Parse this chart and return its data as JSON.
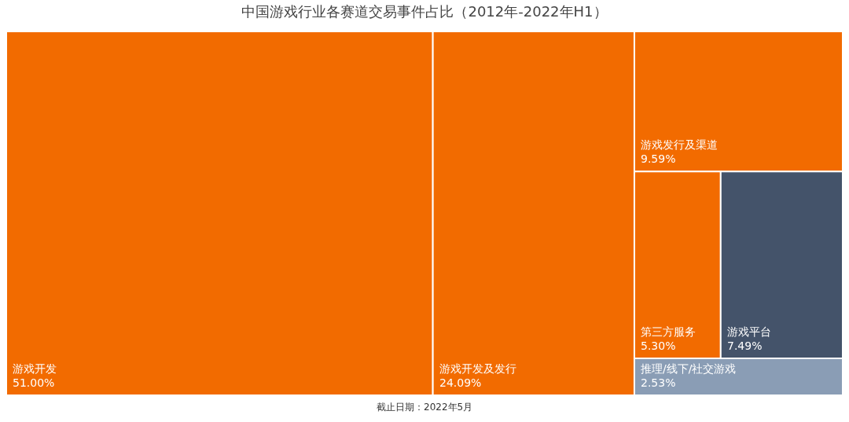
{
  "chart_data": {
    "type": "other",
    "title": "中国游戏行业各赛道交易事件占比（2012年-2022年H1）",
    "categories": [
      "游戏开发",
      "游戏开发及发行",
      "游戏发行及渠道",
      "第三方服务",
      "游戏平台",
      "推理/线下/社交游戏"
    ],
    "values": [
      51.0,
      24.09,
      9.59,
      5.3,
      7.49,
      2.53
    ],
    "value_labels": [
      "51.00%",
      "24.09%",
      "9.59%",
      "5.30%",
      "7.49%",
      "2.53%"
    ],
    "colors": [
      "#f26b00",
      "#f26b00",
      "#f26b00",
      "#f26b00",
      "#44536a",
      "#8a9db5"
    ],
    "annotations": [
      "截止日期：2022年5月"
    ]
  }
}
